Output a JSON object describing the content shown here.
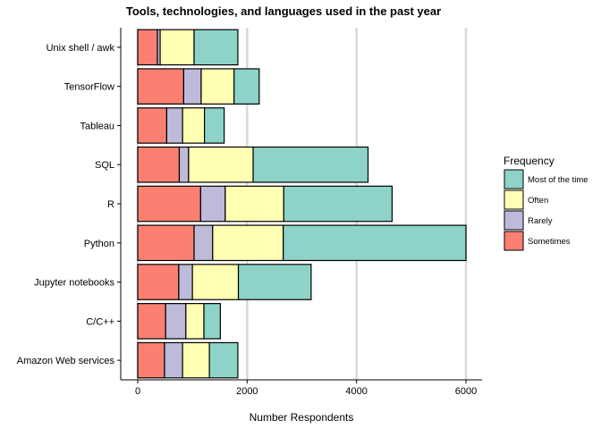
{
  "chart_data": {
    "type": "bar",
    "orientation": "horizontal",
    "stacked": true,
    "title": "Tools, technologies, and languages used in the past year",
    "xlabel": "Number Respondents",
    "ylabel": "",
    "xlim": [
      0,
      6300
    ],
    "x_ticks": [
      0,
      2000,
      4000,
      6000
    ],
    "x_tick_labels": [
      "0",
      "2000",
      "4000",
      "6000"
    ],
    "grid": "vertical major gridlines",
    "categories": [
      "Amazon Web services",
      "C/C++",
      "Jupyter notebooks",
      "Python",
      "R",
      "SQL",
      "Tableau",
      "TensorFlow",
      "Unix shell / awk"
    ],
    "stack_order": [
      "Sometimes",
      "Rarely",
      "Often",
      "Most of the time"
    ],
    "series": [
      {
        "name": "Sometimes",
        "color": "#FB8072",
        "values": [
          490,
          510,
          750,
          1030,
          1150,
          760,
          530,
          840,
          360
        ]
      },
      {
        "name": "Rarely",
        "color": "#BEBADA",
        "values": [
          330,
          370,
          250,
          340,
          450,
          170,
          290,
          320,
          50
        ]
      },
      {
        "name": "Often",
        "color": "#FFFFB3",
        "values": [
          490,
          330,
          840,
          1290,
          1070,
          1180,
          400,
          600,
          620
        ]
      },
      {
        "name": "Most of the time",
        "color": "#8DD3C7",
        "values": [
          520,
          300,
          1330,
          3340,
          1980,
          2100,
          360,
          460,
          800
        ]
      }
    ],
    "legend": {
      "title": "Frequency",
      "position": "right",
      "items": [
        {
          "label": "Most of the time",
          "color": "#8DD3C7"
        },
        {
          "label": "Often",
          "color": "#FFFFB3"
        },
        {
          "label": "Rarely",
          "color": "#BEBADA"
        },
        {
          "label": "Sometimes",
          "color": "#FB8072"
        }
      ]
    }
  }
}
